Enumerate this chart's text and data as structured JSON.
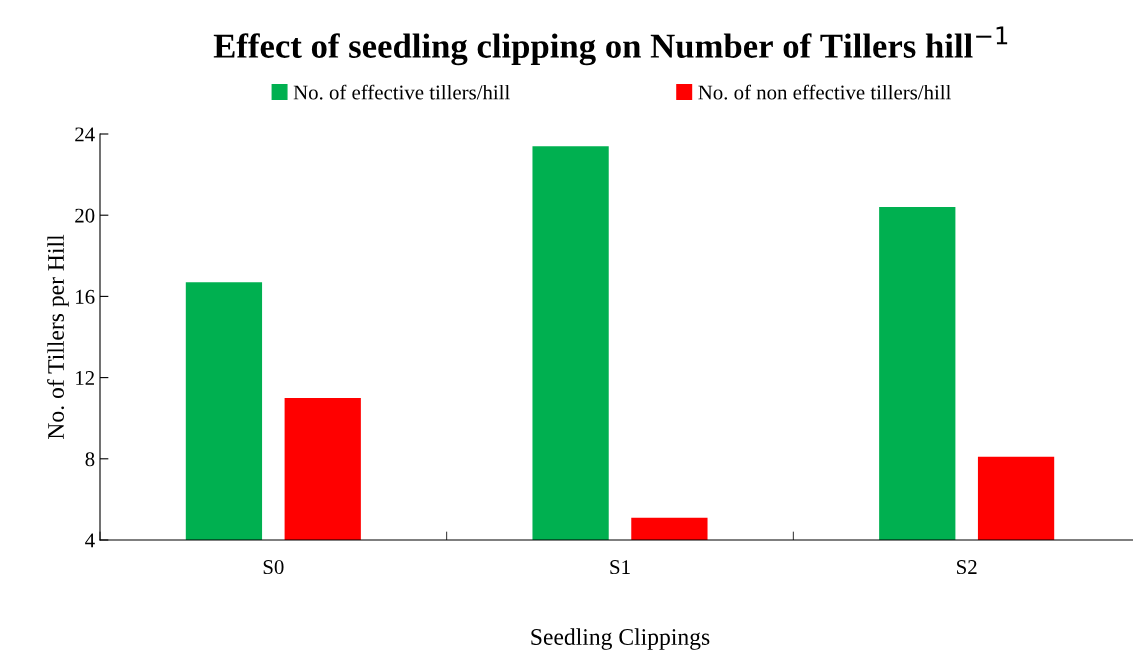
{
  "chart_data": {
    "type": "bar",
    "title": "Effect of seedling clipping on Number of Tillers hill$^{−1}$",
    "xlabel": "Seedling Clippings",
    "ylabel": "No. of Tillers per Hill",
    "categories": [
      "S0",
      "S1",
      "S2"
    ],
    "series": [
      {
        "name": "No. of effective tillers/hill",
        "color": "#00b050",
        "values": [
          16.7,
          23.4,
          20.4
        ]
      },
      {
        "name": "No. of non effective tillers/hill",
        "color": "#ff0000",
        "values": [
          11.0,
          5.1,
          8.1
        ]
      }
    ],
    "ylim": [
      4,
      24
    ],
    "yticks": [
      4,
      8,
      12,
      16,
      20,
      24
    ],
    "grid": false,
    "legend": "top"
  }
}
